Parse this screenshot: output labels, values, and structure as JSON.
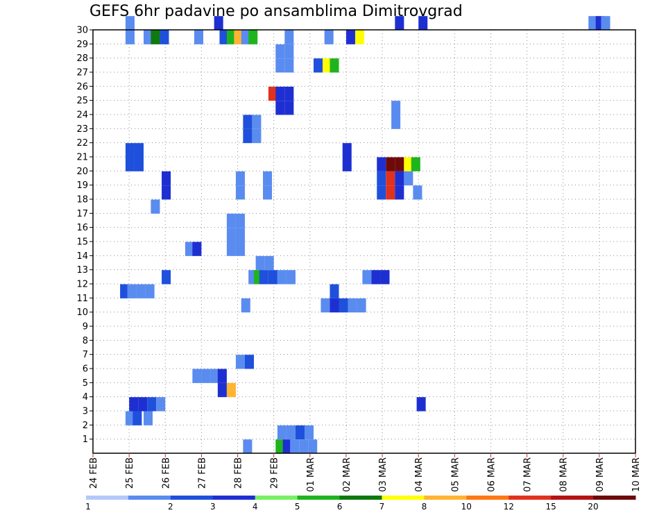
{
  "chart_data": {
    "type": "heatmap",
    "title": "GEFS 6hr padavine po ansamblima Dimitrovgrad",
    "x_start": "24 FEB",
    "x_end": "10 MAR",
    "x_steps_per_day": 4,
    "x_tick_labels": [
      "24 FEB",
      "25 FEB",
      "26 FEB",
      "27 FEB",
      "28 FEB",
      "29 FEB",
      "01 MAR",
      "02 MAR",
      "03 MAR",
      "04 MAR",
      "05 MAR",
      "06 MAR",
      "07 MAR",
      "08 MAR",
      "09 MAR",
      "10 MAR"
    ],
    "y_tick_labels": [
      "1",
      "2",
      "3",
      "4",
      "5",
      "6",
      "7",
      "8",
      "9",
      "10",
      "11",
      "12",
      "13",
      "14",
      "15",
      "16",
      "17",
      "18",
      "19",
      "20",
      "21",
      "22",
      "23",
      "24",
      "25",
      "26",
      "27",
      "28",
      "29",
      "30"
    ],
    "y_range": [
      0,
      30
    ],
    "grid": true,
    "legend": {
      "placement": "bottom",
      "labels": [
        "1",
        "2",
        "3",
        "4",
        "5",
        "6",
        "7",
        "8",
        "10",
        "12",
        "15",
        "20"
      ],
      "colors": [
        "#b4c8fa",
        "#5a8cf0",
        "#1e50dc",
        "#1e2fd2",
        "#78f064",
        "#1eb41e",
        "#0f780f",
        "#ffff00",
        "#ffb432",
        "#ff7814",
        "#e1321e",
        "#b41414",
        "#6e0a0a"
      ]
    },
    "cells": [
      {
        "member": 30,
        "x": [
          0.9
        ],
        "level": 1
      },
      {
        "member": 30,
        "x": [
          3.35
        ],
        "level": 3
      },
      {
        "member": 30,
        "x": [
          8.35
        ],
        "level": 3
      },
      {
        "member": 30,
        "x": [
          9.0
        ],
        "level": 3
      },
      {
        "member": 30,
        "x": [
          13.7
        ],
        "level": 1
      },
      {
        "member": 30,
        "x": [
          13.9
        ],
        "level": 3
      },
      {
        "member": 30,
        "x": [
          14.05
        ],
        "level": 1
      },
      {
        "member": 29,
        "x": [
          0.9
        ],
        "level": 1
      },
      {
        "member": 29,
        "x": [
          1.4
        ],
        "level": 1
      },
      {
        "member": 29,
        "x": [
          1.6
        ],
        "level": 6
      },
      {
        "member": 29,
        "x": [
          1.85
        ],
        "level": 2
      },
      {
        "member": 29,
        "x": [
          2.8
        ],
        "level": 1
      },
      {
        "member": 29,
        "x": [
          3.5
        ],
        "level": 2
      },
      {
        "member": 29,
        "x": [
          3.7
        ],
        "level": 5
      },
      {
        "member": 29,
        "x": [
          3.9
        ],
        "level": 8
      },
      {
        "member": 29,
        "x": [
          4.1
        ],
        "level": 1
      },
      {
        "member": 29,
        "x": [
          4.3
        ],
        "level": 5
      },
      {
        "member": 29,
        "x": [
          5.3
        ],
        "level": 1
      },
      {
        "member": 29,
        "x": [
          6.4
        ],
        "level": 1
      },
      {
        "member": 29,
        "x": [
          7.0
        ],
        "level": 3
      },
      {
        "member": 29,
        "x": [
          7.25
        ],
        "level": 7
      },
      {
        "member": 28,
        "x": [
          5.05,
          5.3
        ],
        "level": 1
      },
      {
        "member": 27,
        "x": [
          5.05,
          5.3
        ],
        "level": 1
      },
      {
        "member": 27,
        "x": [
          6.1
        ],
        "level": 2
      },
      {
        "member": 27,
        "x": [
          6.35
        ],
        "level": 7
      },
      {
        "member": 27,
        "x": [
          6.55
        ],
        "level": 5
      },
      {
        "member": 25,
        "x": [
          4.85
        ],
        "level": 10
      },
      {
        "member": 25,
        "x": [
          5.05,
          5.3
        ],
        "level": 3
      },
      {
        "member": 24,
        "x": [
          5.05,
          5.3
        ],
        "level": 3
      },
      {
        "member": 24,
        "x": [
          8.25
        ],
        "level": 1
      },
      {
        "member": 23,
        "x": [
          8.25
        ],
        "level": 1
      },
      {
        "member": 23,
        "x": [
          4.15
        ],
        "level": 2
      },
      {
        "member": 23,
        "x": [
          4.4
        ],
        "level": 1
      },
      {
        "member": 22,
        "x": [
          4.15
        ],
        "level": 2
      },
      {
        "member": 22,
        "x": [
          4.4
        ],
        "level": 1
      },
      {
        "member": 21,
        "x": [
          0.9,
          1.15
        ],
        "level": 2
      },
      {
        "member": 21,
        "x": [
          6.9
        ],
        "level": 3
      },
      {
        "member": 20,
        "x": [
          0.9,
          1.15
        ],
        "level": 2
      },
      {
        "member": 20,
        "x": [
          6.9
        ],
        "level": 3
      },
      {
        "member": 20,
        "x": [
          7.85
        ],
        "level": 3
      },
      {
        "member": 20,
        "x": [
          8.1,
          8.35
        ],
        "level": 12
      },
      {
        "member": 20,
        "x": [
          8.6
        ],
        "level": 7
      },
      {
        "member": 20,
        "x": [
          8.8
        ],
        "level": 5
      },
      {
        "member": 19,
        "x": [
          7.85
        ],
        "level": 2
      },
      {
        "member": 19,
        "x": [
          8.1
        ],
        "level": 10
      },
      {
        "member": 19,
        "x": [
          8.35
        ],
        "level": 3
      },
      {
        "member": 19,
        "x": [
          8.6
        ],
        "level": 1
      },
      {
        "member": 19,
        "x": [
          1.9
        ],
        "level": 3
      },
      {
        "member": 19,
        "x": [
          3.95
        ],
        "level": 1
      },
      {
        "member": 19,
        "x": [
          4.7
        ],
        "level": 1
      },
      {
        "member": 18,
        "x": [
          1.9
        ],
        "level": 3
      },
      {
        "member": 18,
        "x": [
          3.95
        ],
        "level": 1
      },
      {
        "member": 18,
        "x": [
          4.7
        ],
        "level": 1
      },
      {
        "member": 18,
        "x": [
          7.85
        ],
        "level": 2
      },
      {
        "member": 18,
        "x": [
          8.1
        ],
        "level": 10
      },
      {
        "member": 18,
        "x": [
          8.35
        ],
        "level": 3
      },
      {
        "member": 18,
        "x": [
          8.85
        ],
        "level": 1
      },
      {
        "member": 17,
        "x": [
          1.6
        ],
        "level": 1
      },
      {
        "member": 15,
        "x": [
          3.7,
          3.95
        ],
        "level": 1
      },
      {
        "member": 16,
        "x": [
          3.7,
          3.95
        ],
        "level": 1
      },
      {
        "member": 14,
        "x": [
          3.7,
          3.95
        ],
        "level": 1
      },
      {
        "member": 14,
        "x": [
          2.55
        ],
        "level": 1
      },
      {
        "member": 14,
        "x": [
          2.75
        ],
        "level": 3
      },
      {
        "member": 13,
        "x": [
          4.5,
          4.75
        ],
        "level": 1
      },
      {
        "member": 12,
        "x": [
          4.3
        ],
        "level": 1
      },
      {
        "member": 12,
        "x": [
          4.45
        ],
        "level": 5
      },
      {
        "member": 12,
        "x": [
          4.6,
          4.85
        ],
        "level": 2
      },
      {
        "member": 12,
        "x": [
          5.1,
          5.35
        ],
        "level": 1
      },
      {
        "member": 12,
        "x": [
          1.9
        ],
        "level": 2
      },
      {
        "member": 12,
        "x": [
          7.45
        ],
        "level": 1
      },
      {
        "member": 12,
        "x": [
          7.7,
          7.95
        ],
        "level": 3
      },
      {
        "member": 11,
        "x": [
          0.75
        ],
        "level": 2
      },
      {
        "member": 11,
        "x": [
          0.95,
          1.2,
          1.45
        ],
        "level": 1
      },
      {
        "member": 11,
        "x": [
          6.55
        ],
        "level": 2
      },
      {
        "member": 10,
        "x": [
          6.3
        ],
        "level": 1
      },
      {
        "member": 10,
        "x": [
          6.55
        ],
        "level": 3
      },
      {
        "member": 10,
        "x": [
          6.8
        ],
        "level": 2
      },
      {
        "member": 10,
        "x": [
          7.05,
          7.3
        ],
        "level": 1
      },
      {
        "member": 10,
        "x": [
          4.1
        ],
        "level": 1
      },
      {
        "member": 6,
        "x": [
          3.95
        ],
        "level": 1
      },
      {
        "member": 6,
        "x": [
          4.2
        ],
        "level": 2
      },
      {
        "member": 5,
        "x": [
          2.75
        ],
        "level": 1
      },
      {
        "member": 5,
        "x": [
          3.0,
          3.25
        ],
        "level": 1
      },
      {
        "member": 5,
        "x": [
          3.45
        ],
        "level": 3
      },
      {
        "member": 4,
        "x": [
          3.45
        ],
        "level": 3
      },
      {
        "member": 4,
        "x": [
          3.7
        ],
        "level": 8
      },
      {
        "member": 3,
        "x": [
          1.0,
          1.25
        ],
        "level": 3
      },
      {
        "member": 3,
        "x": [
          1.5
        ],
        "level": 2
      },
      {
        "member": 3,
        "x": [
          1.75
        ],
        "level": 1
      },
      {
        "member": 3,
        "x": [
          8.95
        ],
        "level": 3
      },
      {
        "member": 2,
        "x": [
          0.9
        ],
        "level": 1
      },
      {
        "member": 2,
        "x": [
          1.1
        ],
        "level": 2
      },
      {
        "member": 2,
        "x": [
          1.4
        ],
        "level": 1
      },
      {
        "member": 1,
        "x": [
          5.1,
          5.35
        ],
        "level": 1
      },
      {
        "member": 1,
        "x": [
          5.6
        ],
        "level": 2
      },
      {
        "member": 1,
        "x": [
          5.85
        ],
        "level": 1
      },
      {
        "member": 0,
        "x": [
          5.05
        ],
        "level": 5
      },
      {
        "member": 0,
        "x": [
          5.25
        ],
        "level": 3
      },
      {
        "member": 0,
        "x": [
          5.45
        ],
        "level": 1
      },
      {
        "member": 0,
        "x": [
          5.7
        ],
        "level": 1
      },
      {
        "member": 0,
        "x": [
          5.95
        ],
        "level": 1
      },
      {
        "member": 0,
        "x": [
          4.15
        ],
        "level": 1
      }
    ]
  }
}
